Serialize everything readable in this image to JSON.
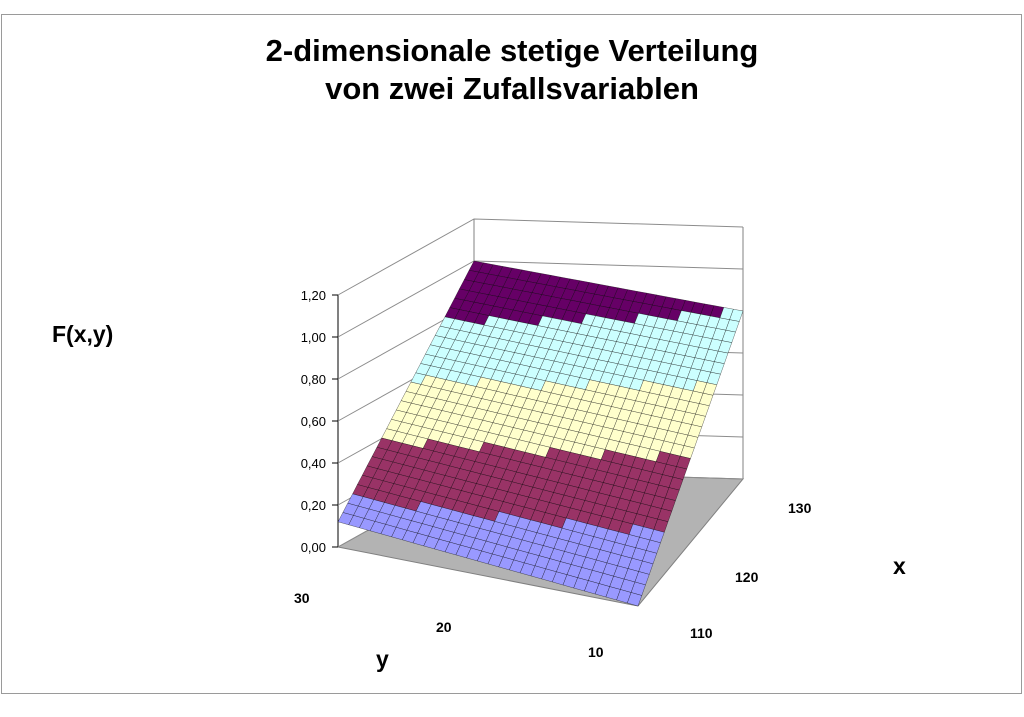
{
  "chart_data": {
    "type": "surface",
    "title_lines": [
      "2-dimensionale stetige Verteilung",
      "von zwei Zufallsvariablen"
    ],
    "zlabel": "F(x,y)",
    "xlabel": "x",
    "ylabel": "y",
    "z_ticks": [
      "0,00",
      "0,20",
      "0,40",
      "0,60",
      "0,80",
      "1,00",
      "1,20"
    ],
    "x_ticks": [
      "110",
      "120",
      "130"
    ],
    "y_ticks": [
      "30",
      "20",
      "10"
    ],
    "zlim": [
      0,
      1.2
    ],
    "band_colors": [
      "#9999ff",
      "#993366",
      "#ffffcc",
      "#ccffff",
      "#660066"
    ],
    "band_ranges": [
      [
        0,
        0.2
      ],
      [
        0.2,
        0.4
      ],
      [
        0.4,
        0.6
      ],
      [
        0.6,
        0.8
      ],
      [
        0.8,
        1.0
      ]
    ],
    "corner_values": {
      "front_left": 0.12,
      "front_right": 0.0,
      "back_left": 1.0,
      "back_right": 0.8
    }
  }
}
